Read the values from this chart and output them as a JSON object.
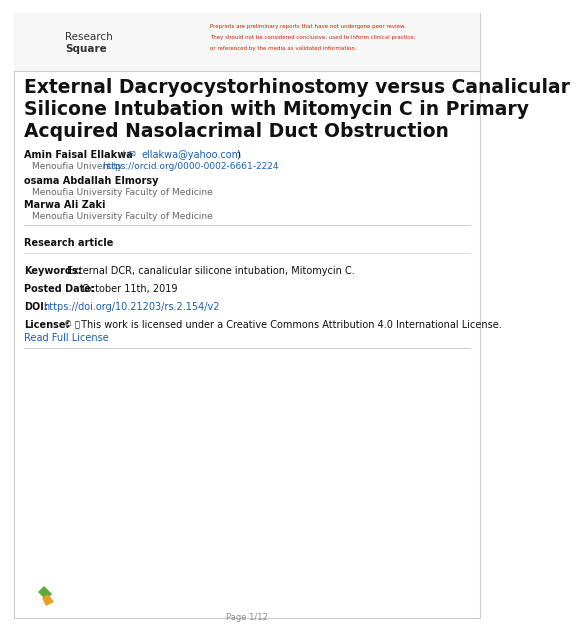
{
  "bg_color": "#ffffff",
  "border_color": "#cccccc",
  "preprint_warning_lines": [
    "Preprints are preliminary reports that have not undergone peer review.",
    "They should not be considered conclusive, used to inform clinical practice,",
    "or referenced by the media as validated information."
  ],
  "preprint_color": "#cc2200",
  "title_line1": "External Dacryocystorhinostomy versus Canalicular",
  "title_line2": "Silicone Intubation with Mitomycin C in Primary",
  "title_line3": "Acquired Nasolacrimal Duct Obstruction",
  "title_color": "#111111",
  "author1_name": "Amin Faisal Ellakwa",
  "author1_email": "ellakwa@yahoo.com",
  "author1_affil": "Menoufia University",
  "author1_orcid": "https://orcid.org/0000-0002-6661-2224",
  "author2_name": "osama Abdallah Elmorsy",
  "author2_affil": "Menoufia University Faculty of Medicine",
  "author3_name": "Marwa Ali Zaki",
  "author3_affil": "Menoufia University Faculty of Medicine",
  "author_name_color": "#111111",
  "author_affil_color": "#666666",
  "link_color": "#1a5fb4",
  "section_label": "Research article",
  "keywords_label": "Keywords:",
  "keywords_text": "External DCR, canalicular silicone intubation, Mitomycin C.",
  "posted_label": "Posted Date:",
  "posted_text": " October 11th, 2019",
  "doi_label": "DOI:",
  "doi_link": "https://doi.org/10.21203/rs.2.154/v2",
  "license_label": "License:",
  "license_text": " This work is licensed under a Creative Commons Attribution 4.0 International License.",
  "read_license": "Read Full License",
  "page_footer": "Page 1/12",
  "separator_color": "#cccccc",
  "logo_green1": "#5aaa3c",
  "logo_green2": "#3d8c28",
  "logo_orange": "#e8a020"
}
